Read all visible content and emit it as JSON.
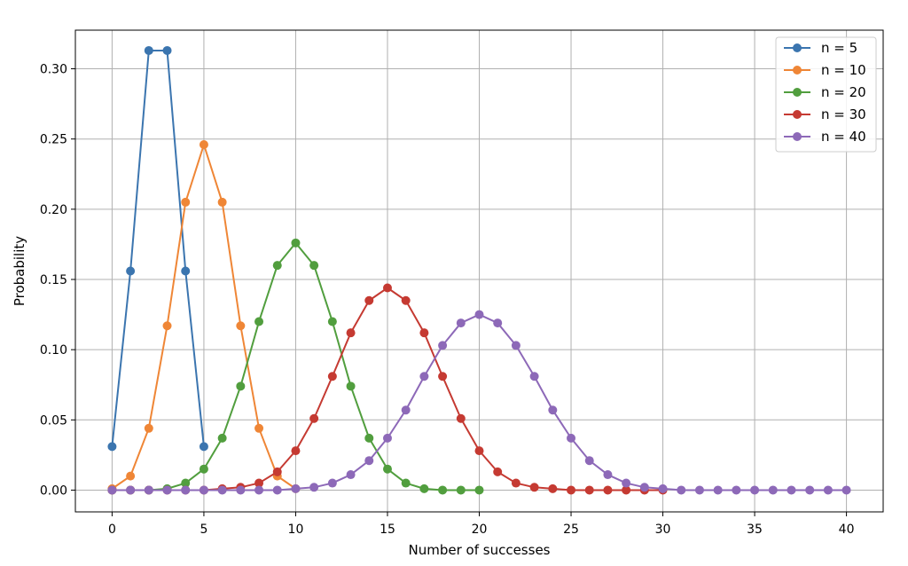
{
  "chart_data": {
    "type": "line",
    "title": "",
    "xlabel": "Number of successes",
    "ylabel": "Probability",
    "xlim": [
      -2,
      42
    ],
    "ylim": [
      -0.0155,
      0.3275
    ],
    "xticks": [
      0,
      5,
      10,
      15,
      20,
      25,
      30,
      35,
      40
    ],
    "yticks": [
      0.0,
      0.05,
      0.1,
      0.15,
      0.2,
      0.25,
      0.3
    ],
    "ytick_labels": [
      "0.00",
      "0.05",
      "0.10",
      "0.15",
      "0.20",
      "0.25",
      "0.30"
    ],
    "grid": true,
    "legend_position": "top-right",
    "series": [
      {
        "name": "n = 5",
        "color": "#3b75af",
        "x": [
          0,
          1,
          2,
          3,
          4,
          5
        ],
        "values": [
          0.031,
          0.156,
          0.313,
          0.313,
          0.156,
          0.031
        ]
      },
      {
        "name": "n = 10",
        "color": "#ef8636",
        "x": [
          0,
          1,
          2,
          3,
          4,
          5,
          6,
          7,
          8,
          9,
          10
        ],
        "values": [
          0.001,
          0.01,
          0.044,
          0.117,
          0.205,
          0.246,
          0.205,
          0.117,
          0.044,
          0.01,
          0.001
        ]
      },
      {
        "name": "n = 20",
        "color": "#519e3e",
        "x": [
          0,
          1,
          2,
          3,
          4,
          5,
          6,
          7,
          8,
          9,
          10,
          11,
          12,
          13,
          14,
          15,
          16,
          17,
          18,
          19,
          20
        ],
        "values": [
          0.0,
          0.0,
          0.0,
          0.001,
          0.005,
          0.015,
          0.037,
          0.074,
          0.12,
          0.16,
          0.176,
          0.16,
          0.12,
          0.074,
          0.037,
          0.015,
          0.005,
          0.001,
          0.0,
          0.0,
          0.0
        ]
      },
      {
        "name": "n = 30",
        "color": "#c53a32",
        "x": [
          0,
          1,
          2,
          3,
          4,
          5,
          6,
          7,
          8,
          9,
          10,
          11,
          12,
          13,
          14,
          15,
          16,
          17,
          18,
          19,
          20,
          21,
          22,
          23,
          24,
          25,
          26,
          27,
          28,
          29,
          30
        ],
        "values": [
          0.0,
          0.0,
          0.0,
          0.0,
          0.0,
          0.0,
          0.001,
          0.002,
          0.005,
          0.013,
          0.028,
          0.051,
          0.081,
          0.112,
          0.135,
          0.144,
          0.135,
          0.112,
          0.081,
          0.051,
          0.028,
          0.013,
          0.005,
          0.002,
          0.001,
          0.0,
          0.0,
          0.0,
          0.0,
          0.0,
          0.0
        ]
      },
      {
        "name": "n = 40",
        "color": "#8d69b8",
        "x": [
          0,
          1,
          2,
          3,
          4,
          5,
          6,
          7,
          8,
          9,
          10,
          11,
          12,
          13,
          14,
          15,
          16,
          17,
          18,
          19,
          20,
          21,
          22,
          23,
          24,
          25,
          26,
          27,
          28,
          29,
          30,
          31,
          32,
          33,
          34,
          35,
          36,
          37,
          38,
          39,
          40
        ],
        "values": [
          0.0,
          0.0,
          0.0,
          0.0,
          0.0,
          0.0,
          0.0,
          0.0,
          0.0,
          0.0,
          0.001,
          0.002,
          0.005,
          0.011,
          0.021,
          0.037,
          0.057,
          0.081,
          0.103,
          0.119,
          0.125,
          0.119,
          0.103,
          0.081,
          0.057,
          0.037,
          0.021,
          0.011,
          0.005,
          0.002,
          0.001,
          0.0,
          0.0,
          0.0,
          0.0,
          0.0,
          0.0,
          0.0,
          0.0,
          0.0,
          0.0
        ]
      }
    ]
  }
}
